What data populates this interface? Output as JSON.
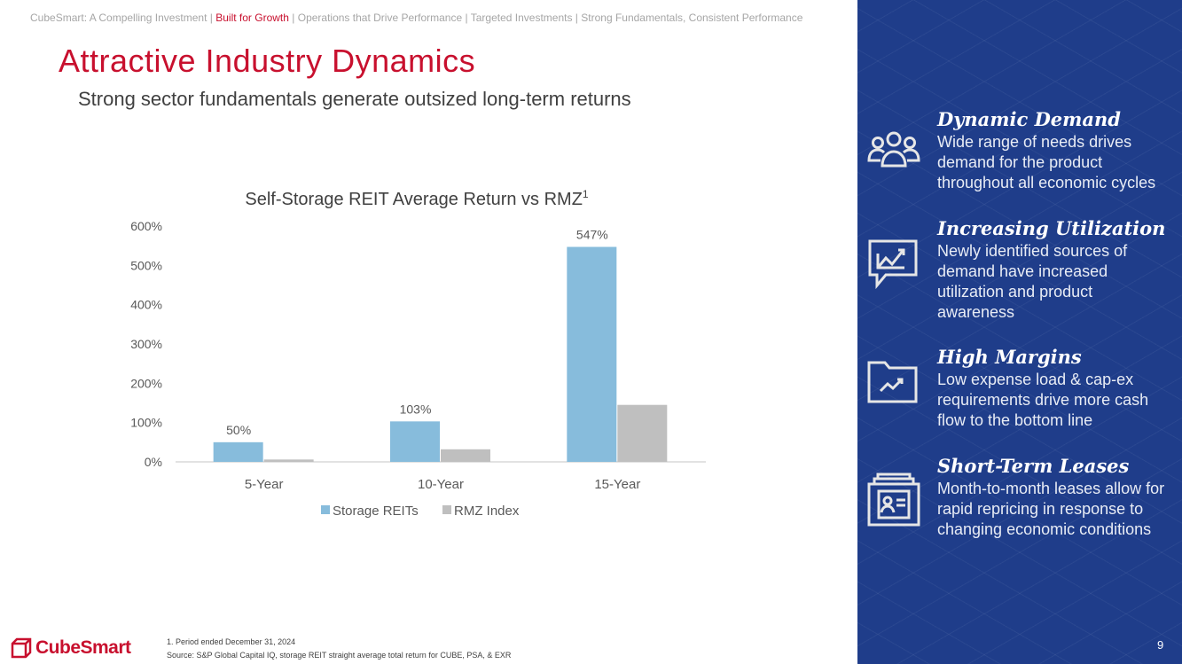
{
  "nav": {
    "items": [
      "CubeSmart: A Compelling Investment",
      "Built for Growth",
      "Operations that Drive Performance",
      "Targeted Investments",
      "Strong Fundamentals, Consistent Performance"
    ],
    "separator": " | ",
    "active_index": 1
  },
  "header": {
    "title": "Attractive Industry Dynamics",
    "subtitle": "Strong sector fundamentals generate outsized long-term returns"
  },
  "chart_data": {
    "type": "bar",
    "title": "Self-Storage REIT Average Return vs RMZ",
    "title_superscript": "1",
    "categories": [
      "5-Year",
      "10-Year",
      "15-Year"
    ],
    "series": [
      {
        "name": "Storage REITs",
        "values": [
          50,
          103,
          547
        ],
        "labels": [
          "50%",
          "103%",
          "547%"
        ],
        "color": "#87bcdc"
      },
      {
        "name": "RMZ Index",
        "values": [
          6,
          32,
          145
        ],
        "color": "#bfbfbf"
      }
    ],
    "yticks": [
      "0%",
      "100%",
      "200%",
      "300%",
      "400%",
      "500%",
      "600%"
    ],
    "ylim": [
      0,
      600
    ],
    "grid": false,
    "legend": "bottom"
  },
  "panel": {
    "items": [
      {
        "title": "Dynamic Demand",
        "text": "Wide range of needs drives demand for the product throughout all economic cycles",
        "icon": "people-group-icon"
      },
      {
        "title": "Increasing Utilization",
        "text": "Newly identified sources of demand have increased utilization and product awareness",
        "icon": "chart-speech-bubble-icon"
      },
      {
        "title": "High Margins",
        "text": "Low expense load & cap-ex requirements drive more cash flow to the bottom line",
        "icon": "folder-trend-icon"
      },
      {
        "title": "Short-Term Leases",
        "text": "Month-to-month leases allow for rapid repricing in response to changing economic conditions",
        "icon": "file-drawer-icon"
      }
    ],
    "page_number": "9"
  },
  "footer": {
    "brand": "CubeSmart",
    "note": "1.    Period ended December 31, 2024",
    "source": "Source: S&P Global Capital IQ, storage REIT straight average total return for CUBE, PSA, & EXR",
    "brand_color": "#c8102e"
  }
}
